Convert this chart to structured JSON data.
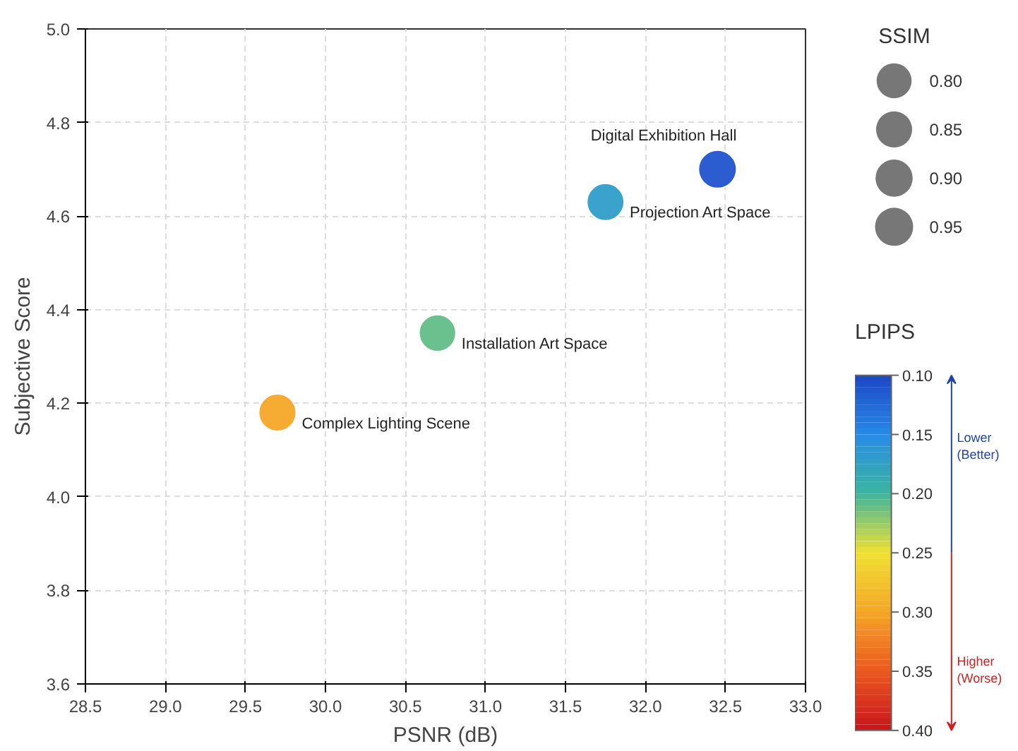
{
  "chart_data": {
    "type": "bubble",
    "xlabel": "PSNR (dB)",
    "ylabel": "Subjective Score",
    "legend_title": "SSIM",
    "clabel": "LPIPS",
    "xlim": [
      28.5,
      33.0
    ],
    "xticks": [
      {
        "value": 28.5,
        "label": "28.5"
      },
      {
        "value": 29.0,
        "label": "29.0"
      },
      {
        "value": 29.5,
        "label": "29.5"
      },
      {
        "value": 30.0,
        "label": "30.0"
      },
      {
        "value": 30.5,
        "label": "30.5"
      },
      {
        "value": 31.0,
        "label": "31.0"
      },
      {
        "value": 31.5,
        "label": "31.5"
      },
      {
        "value": 32.0,
        "label": "32.0"
      },
      {
        "value": 32.5,
        "label": "32.5"
      },
      {
        "value": 33.0,
        "label": "33.0"
      }
    ],
    "ylim": [
      3.6,
      5.0
    ],
    "yticks": [
      {
        "value": 3.6,
        "label": "3.6"
      },
      {
        "value": 3.8,
        "label": "3.8"
      },
      {
        "value": 4.0,
        "label": "4.0"
      },
      {
        "value": 4.2,
        "label": "4.2"
      },
      {
        "value": 4.4,
        "label": "4.4"
      },
      {
        "value": 4.6,
        "label": "4.6"
      },
      {
        "value": 4.8,
        "label": "4.8"
      },
      {
        "value": 5.0,
        "label": "5.0"
      }
    ],
    "clim": [
      0.1,
      0.4
    ],
    "cticks": [
      {
        "value": 0.1,
        "label": "0.10"
      },
      {
        "value": 0.15,
        "label": "0.15"
      },
      {
        "value": 0.2,
        "label": "0.20"
      },
      {
        "value": 0.25,
        "label": "0.25"
      },
      {
        "value": 0.3,
        "label": "0.30"
      },
      {
        "value": 0.35,
        "label": "0.35"
      },
      {
        "value": 0.4,
        "label": "0.40"
      }
    ],
    "size_legend": [
      {
        "value": 0.8,
        "label": "0.80"
      },
      {
        "value": 0.85,
        "label": "0.85"
      },
      {
        "value": 0.9,
        "label": "0.90"
      },
      {
        "value": 0.95,
        "label": "0.95"
      }
    ],
    "grid": true,
    "marker": "circle",
    "series": [
      {
        "name": "Digital Exhibition Hall",
        "x": [
          32.45
        ],
        "values": [
          4.7
        ],
        "sizes": [
          0.95
        ],
        "cvalues": [
          0.11
        ]
      },
      {
        "name": "Projection Art Space",
        "x": [
          31.75
        ],
        "values": [
          4.63
        ],
        "sizes": [
          0.91
        ],
        "cvalues": [
          0.17
        ]
      },
      {
        "name": "Installation Art Space",
        "x": [
          30.7
        ],
        "values": [
          4.35
        ],
        "sizes": [
          0.89
        ],
        "cvalues": [
          0.21
        ]
      },
      {
        "name": "Complex Lighting Scene",
        "x": [
          29.7
        ],
        "values": [
          4.18
        ],
        "sizes": [
          0.92
        ],
        "cvalues": [
          0.3
        ]
      }
    ],
    "annotations": [
      "Lower\n(Better)",
      "Higher\n(Worse)"
    ]
  }
}
